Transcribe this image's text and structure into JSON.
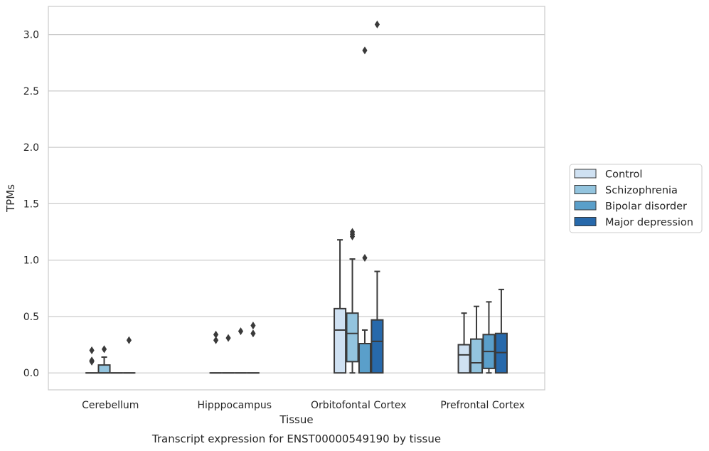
{
  "chart_data": {
    "type": "box",
    "title": "Transcript expression for ENST00000549190 by tissue",
    "xlabel": "Tissue",
    "ylabel": "TPMs",
    "ylim": [
      -0.15,
      3.25
    ],
    "yticks": [
      "0.0",
      "0.5",
      "1.0",
      "1.5",
      "2.0",
      "2.5",
      "3.0"
    ],
    "grid": "horizontal",
    "legend_position": "right",
    "categories": [
      "Cerebellum",
      "Hipppocampus",
      "Orbitofontal Cortex",
      "Prefrontal Cortex"
    ],
    "series": [
      {
        "name": "Control",
        "color": "#cfe1f2",
        "boxes": [
          {
            "q1": 0,
            "median": 0,
            "q3": 0,
            "whisker_low": 0,
            "whisker_high": 0,
            "outliers": [
              0.1,
              0.11,
              0.2
            ]
          },
          {
            "q1": 0,
            "median": 0,
            "q3": 0,
            "whisker_low": 0,
            "whisker_high": 0,
            "outliers": [
              0.29,
              0.34
            ]
          },
          {
            "q1": 0,
            "median": 0.38,
            "q3": 0.57,
            "whisker_low": 0,
            "whisker_high": 1.18,
            "outliers": []
          },
          {
            "q1": 0,
            "median": 0.16,
            "q3": 0.25,
            "whisker_low": 0,
            "whisker_high": 0.53,
            "outliers": []
          }
        ]
      },
      {
        "name": "Schizophrenia",
        "color": "#93c4de",
        "boxes": [
          {
            "q1": 0,
            "median": 0,
            "q3": 0.07,
            "whisker_low": 0,
            "whisker_high": 0.14,
            "outliers": [
              0.21
            ]
          },
          {
            "q1": 0,
            "median": 0,
            "q3": 0,
            "whisker_low": 0,
            "whisker_high": 0,
            "outliers": [
              0.31
            ]
          },
          {
            "q1": 0.1,
            "median": 0.35,
            "q3": 0.53,
            "whisker_low": 0,
            "whisker_high": 1.01,
            "outliers": [
              1.21,
              1.23,
              1.25
            ]
          },
          {
            "q1": 0,
            "median": 0.09,
            "q3": 0.3,
            "whisker_low": 0,
            "whisker_high": 0.59,
            "outliers": []
          }
        ]
      },
      {
        "name": "Bipolar disorder",
        "color": "#5a9fca",
        "boxes": [
          {
            "q1": 0,
            "median": 0,
            "q3": 0,
            "whisker_low": 0,
            "whisker_high": 0,
            "outliers": []
          },
          {
            "q1": 0,
            "median": 0,
            "q3": 0,
            "whisker_low": 0,
            "whisker_high": 0,
            "outliers": [
              0.37
            ]
          },
          {
            "q1": 0,
            "median": 0.26,
            "q3": 0.26,
            "whisker_low": 0,
            "whisker_high": 0.38,
            "outliers": [
              1.02,
              2.86
            ]
          },
          {
            "q1": 0.04,
            "median": 0.19,
            "q3": 0.34,
            "whisker_low": 0,
            "whisker_high": 0.63,
            "outliers": []
          }
        ]
      },
      {
        "name": "Major depression",
        "color": "#2769ab",
        "boxes": [
          {
            "q1": 0,
            "median": 0,
            "q3": 0,
            "whisker_low": 0,
            "whisker_high": 0,
            "outliers": [
              0.29
            ]
          },
          {
            "q1": 0,
            "median": 0,
            "q3": 0,
            "whisker_low": 0,
            "whisker_high": 0,
            "outliers": [
              0.35,
              0.42
            ]
          },
          {
            "q1": 0,
            "median": 0.28,
            "q3": 0.47,
            "whisker_low": 0,
            "whisker_high": 0.9,
            "outliers": [
              3.09
            ]
          },
          {
            "q1": 0,
            "median": 0.18,
            "q3": 0.35,
            "whisker_low": 0,
            "whisker_high": 0.74,
            "outliers": []
          }
        ]
      }
    ]
  }
}
